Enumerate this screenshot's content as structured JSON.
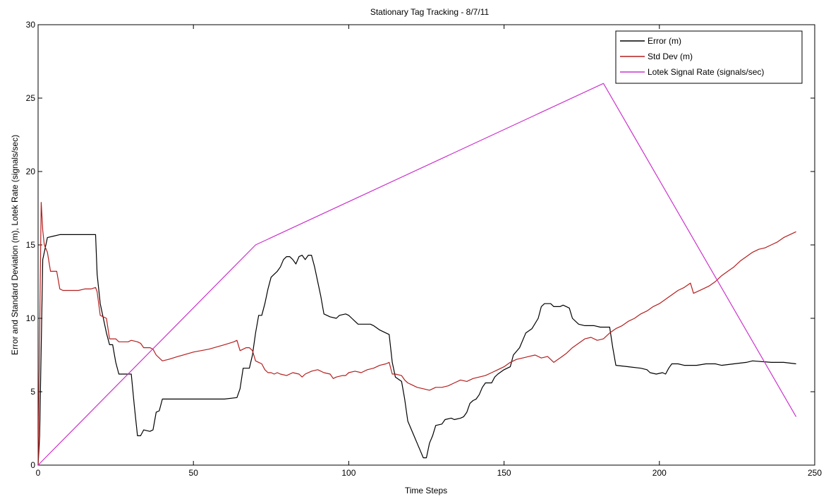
{
  "chart_data": {
    "type": "line",
    "title": "Stationary Tag Tracking - 8/7/11",
    "xlabel": "Time Steps",
    "ylabel": "Error and Standard Deviation (m), Lotek Rate (signals/sec)",
    "xlim": [
      0,
      250
    ],
    "ylim": [
      0,
      30
    ],
    "xticks": [
      0,
      50,
      100,
      150,
      200,
      250
    ],
    "yticks": [
      0,
      5,
      10,
      15,
      20,
      25,
      30
    ],
    "grid": false,
    "legend_position": "top-right",
    "series": [
      {
        "name": "Error (m)",
        "color": "#000000",
        "points": [
          [
            0,
            0
          ],
          [
            0.5,
            2
          ],
          [
            1,
            8
          ],
          [
            1.5,
            14
          ],
          [
            2,
            14.5
          ],
          [
            3,
            15.5
          ],
          [
            5,
            15.6
          ],
          [
            7,
            15.7
          ],
          [
            10,
            15.7
          ],
          [
            15,
            15.7
          ],
          [
            18.5,
            15.7
          ],
          [
            19,
            13
          ],
          [
            20,
            11
          ],
          [
            21,
            10
          ],
          [
            22,
            9
          ],
          [
            23,
            8.2
          ],
          [
            24,
            8.2
          ],
          [
            25,
            7
          ],
          [
            26,
            6.2
          ],
          [
            29,
            6.2
          ],
          [
            30,
            6.2
          ],
          [
            31,
            4
          ],
          [
            32,
            2
          ],
          [
            33,
            2
          ],
          [
            34,
            2.4
          ],
          [
            36,
            2.3
          ],
          [
            37,
            2.4
          ],
          [
            38,
            3.6
          ],
          [
            39,
            3.7
          ],
          [
            40,
            4.5
          ],
          [
            42,
            4.5
          ],
          [
            45,
            4.5
          ],
          [
            50,
            4.5
          ],
          [
            55,
            4.5
          ],
          [
            60,
            4.5
          ],
          [
            64,
            4.6
          ],
          [
            65,
            5.2
          ],
          [
            66,
            6.6
          ],
          [
            68,
            6.6
          ],
          [
            69,
            7.5
          ],
          [
            70,
            9
          ],
          [
            71,
            10.2
          ],
          [
            72,
            10.2
          ],
          [
            73,
            11
          ],
          [
            74,
            12
          ],
          [
            75,
            12.8
          ],
          [
            76,
            13
          ],
          [
            77,
            13.2
          ],
          [
            78,
            13.5
          ],
          [
            79,
            14
          ],
          [
            80,
            14.2
          ],
          [
            81,
            14.2
          ],
          [
            82,
            14
          ],
          [
            83,
            13.7
          ],
          [
            84,
            14.2
          ],
          [
            85,
            14.3
          ],
          [
            86,
            14
          ],
          [
            87,
            14.3
          ],
          [
            88,
            14.3
          ],
          [
            89,
            13.5
          ],
          [
            90,
            12.5
          ],
          [
            91,
            11.5
          ],
          [
            92,
            10.3
          ],
          [
            94,
            10.1
          ],
          [
            96,
            10
          ],
          [
            97,
            10.2
          ],
          [
            99,
            10.3
          ],
          [
            100,
            10.2
          ],
          [
            101,
            10
          ],
          [
            102,
            9.8
          ],
          [
            103,
            9.6
          ],
          [
            105,
            9.6
          ],
          [
            107,
            9.6
          ],
          [
            108,
            9.5
          ],
          [
            110,
            9.2
          ],
          [
            112,
            9
          ],
          [
            113,
            8.9
          ],
          [
            114,
            7
          ],
          [
            114.5,
            6.5
          ],
          [
            115,
            6
          ],
          [
            117,
            5.7
          ],
          [
            118,
            4.5
          ],
          [
            119,
            3
          ],
          [
            120,
            2.5
          ],
          [
            121,
            2
          ],
          [
            122,
            1.5
          ],
          [
            123,
            1
          ],
          [
            124,
            0.5
          ],
          [
            125,
            0.5
          ],
          [
            126,
            1.5
          ],
          [
            127,
            2
          ],
          [
            128,
            2.7
          ],
          [
            130,
            2.8
          ],
          [
            131,
            3.1
          ],
          [
            133,
            3.2
          ],
          [
            134,
            3.1
          ],
          [
            136,
            3.2
          ],
          [
            137,
            3.3
          ],
          [
            138,
            3.6
          ],
          [
            139,
            4.2
          ],
          [
            140,
            4.4
          ],
          [
            141,
            4.5
          ],
          [
            142,
            4.8
          ],
          [
            143,
            5.3
          ],
          [
            144,
            5.6
          ],
          [
            146,
            5.6
          ],
          [
            147,
            6
          ],
          [
            148,
            6.2
          ],
          [
            150,
            6.5
          ],
          [
            152,
            6.7
          ],
          [
            153,
            7.5
          ],
          [
            155,
            8
          ],
          [
            157,
            9
          ],
          [
            159,
            9.3
          ],
          [
            161,
            10
          ],
          [
            162,
            10.8
          ],
          [
            163,
            11
          ],
          [
            165,
            11
          ],
          [
            166,
            10.8
          ],
          [
            168,
            10.8
          ],
          [
            169,
            10.9
          ],
          [
            171,
            10.7
          ],
          [
            172,
            10
          ],
          [
            174,
            9.6
          ],
          [
            176,
            9.5
          ],
          [
            179,
            9.5
          ],
          [
            181,
            9.4
          ],
          [
            184,
            9.4
          ],
          [
            185,
            8
          ],
          [
            186,
            6.8
          ],
          [
            190,
            6.7
          ],
          [
            194,
            6.6
          ],
          [
            196,
            6.5
          ],
          [
            197,
            6.3
          ],
          [
            199,
            6.2
          ],
          [
            201,
            6.3
          ],
          [
            202,
            6.2
          ],
          [
            203,
            6.6
          ],
          [
            204,
            6.9
          ],
          [
            206,
            6.9
          ],
          [
            208,
            6.8
          ],
          [
            212,
            6.8
          ],
          [
            215,
            6.9
          ],
          [
            218,
            6.9
          ],
          [
            220,
            6.8
          ],
          [
            224,
            6.9
          ],
          [
            228,
            7
          ],
          [
            230,
            7.1
          ],
          [
            236,
            7
          ],
          [
            240,
            7
          ],
          [
            244,
            6.9
          ]
        ]
      },
      {
        "name": "Std Dev (m)",
        "color": "#b51f1f",
        "points": [
          [
            0,
            0
          ],
          [
            0.5,
            9
          ],
          [
            1,
            17.9
          ],
          [
            1.5,
            16
          ],
          [
            2,
            15
          ],
          [
            3,
            14.5
          ],
          [
            4,
            13.2
          ],
          [
            5,
            13.2
          ],
          [
            6,
            13.2
          ],
          [
            7,
            12
          ],
          [
            8,
            11.9
          ],
          [
            10,
            11.9
          ],
          [
            13,
            11.9
          ],
          [
            15,
            12
          ],
          [
            17,
            12
          ],
          [
            18.5,
            12.1
          ],
          [
            19,
            11.8
          ],
          [
            20,
            10.2
          ],
          [
            21,
            10.1
          ],
          [
            22,
            10
          ],
          [
            23,
            8.6
          ],
          [
            25,
            8.6
          ],
          [
            26,
            8.4
          ],
          [
            29,
            8.4
          ],
          [
            30,
            8.5
          ],
          [
            32,
            8.4
          ],
          [
            33,
            8.3
          ],
          [
            34,
            8
          ],
          [
            36,
            8
          ],
          [
            37,
            7.9
          ],
          [
            38,
            7.5
          ],
          [
            39,
            7.3
          ],
          [
            40,
            7.1
          ],
          [
            42,
            7.2
          ],
          [
            45,
            7.4
          ],
          [
            50,
            7.7
          ],
          [
            55,
            7.9
          ],
          [
            60,
            8.2
          ],
          [
            63,
            8.4
          ],
          [
            64,
            8.5
          ],
          [
            65,
            7.8
          ],
          [
            66,
            7.9
          ],
          [
            67,
            8
          ],
          [
            68,
            8
          ],
          [
            69,
            7.8
          ],
          [
            70,
            7.1
          ],
          [
            71,
            7
          ],
          [
            72,
            6.9
          ],
          [
            73,
            6.5
          ],
          [
            74,
            6.3
          ],
          [
            75,
            6.3
          ],
          [
            76,
            6.2
          ],
          [
            77,
            6.3
          ],
          [
            78,
            6.2
          ],
          [
            80,
            6.1
          ],
          [
            82,
            6.3
          ],
          [
            84,
            6.2
          ],
          [
            85,
            6
          ],
          [
            86,
            6.2
          ],
          [
            88,
            6.4
          ],
          [
            90,
            6.5
          ],
          [
            92,
            6.3
          ],
          [
            94,
            6.2
          ],
          [
            95,
            5.9
          ],
          [
            96,
            6
          ],
          [
            98,
            6.1
          ],
          [
            99,
            6.1
          ],
          [
            100,
            6.3
          ],
          [
            102,
            6.4
          ],
          [
            104,
            6.3
          ],
          [
            106,
            6.5
          ],
          [
            108,
            6.6
          ],
          [
            110,
            6.8
          ],
          [
            112,
            6.9
          ],
          [
            113,
            7
          ],
          [
            114,
            6.2
          ],
          [
            115,
            6.2
          ],
          [
            117,
            6.1
          ],
          [
            118,
            5.8
          ],
          [
            119,
            5.6
          ],
          [
            120,
            5.5
          ],
          [
            122,
            5.3
          ],
          [
            124,
            5.2
          ],
          [
            126,
            5.1
          ],
          [
            128,
            5.3
          ],
          [
            130,
            5.3
          ],
          [
            132,
            5.4
          ],
          [
            134,
            5.6
          ],
          [
            136,
            5.8
          ],
          [
            138,
            5.7
          ],
          [
            140,
            5.9
          ],
          [
            142,
            6
          ],
          [
            144,
            6.1
          ],
          [
            146,
            6.3
          ],
          [
            148,
            6.5
          ],
          [
            150,
            6.7
          ],
          [
            152,
            7
          ],
          [
            154,
            7.2
          ],
          [
            156,
            7.3
          ],
          [
            158,
            7.4
          ],
          [
            160,
            7.5
          ],
          [
            162,
            7.3
          ],
          [
            164,
            7.4
          ],
          [
            166,
            7
          ],
          [
            168,
            7.3
          ],
          [
            170,
            7.6
          ],
          [
            172,
            8
          ],
          [
            174,
            8.3
          ],
          [
            176,
            8.6
          ],
          [
            178,
            8.7
          ],
          [
            180,
            8.5
          ],
          [
            182,
            8.6
          ],
          [
            184,
            9
          ],
          [
            186,
            9.3
          ],
          [
            188,
            9.5
          ],
          [
            190,
            9.8
          ],
          [
            192,
            10
          ],
          [
            194,
            10.3
          ],
          [
            196,
            10.5
          ],
          [
            198,
            10.8
          ],
          [
            200,
            11
          ],
          [
            202,
            11.3
          ],
          [
            204,
            11.6
          ],
          [
            206,
            11.9
          ],
          [
            208,
            12.1
          ],
          [
            210,
            12.4
          ],
          [
            211,
            11.7
          ],
          [
            212,
            11.8
          ],
          [
            214,
            12
          ],
          [
            216,
            12.2
          ],
          [
            218,
            12.5
          ],
          [
            220,
            12.9
          ],
          [
            222,
            13.2
          ],
          [
            224,
            13.5
          ],
          [
            226,
            13.9
          ],
          [
            228,
            14.2
          ],
          [
            230,
            14.5
          ],
          [
            232,
            14.7
          ],
          [
            234,
            14.8
          ],
          [
            236,
            15
          ],
          [
            238,
            15.2
          ],
          [
            240,
            15.5
          ],
          [
            242,
            15.7
          ],
          [
            244,
            15.9
          ]
        ]
      },
      {
        "name": "Lotek Signal Rate (signals/sec)",
        "color": "#cc33cc",
        "points": [
          [
            0,
            0
          ],
          [
            70,
            15
          ],
          [
            182,
            26
          ],
          [
            244,
            3.3
          ]
        ]
      }
    ]
  }
}
